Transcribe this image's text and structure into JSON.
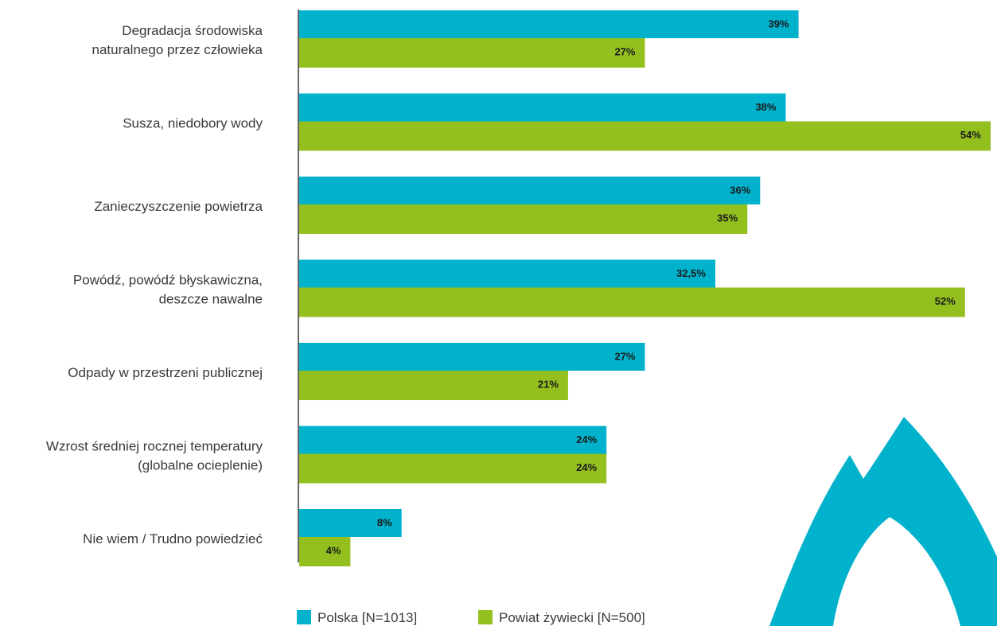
{
  "chart_data": {
    "type": "bar",
    "orientation": "horizontal",
    "categories": [
      [
        "Degradacja środowiska",
        "naturalnego przez człowieka"
      ],
      [
        "Susza, niedobory wody"
      ],
      [
        "Zanieczyszczenie powietrza"
      ],
      [
        "Powódź, powódź błyskawiczna,",
        "deszcze nawalne"
      ],
      [
        "Odpady w przestrzeni publicznej"
      ],
      [
        "Wzrost średniej rocznej temperatury",
        "(globalne ocieplenie)"
      ],
      [
        "Nie wiem / Trudno powiedzieć"
      ]
    ],
    "series": [
      {
        "name": "Polska [N=1013]",
        "color": "#00b2cc",
        "values": [
          39,
          38,
          36,
          32.5,
          27,
          24,
          8
        ],
        "labels": [
          "39%",
          "38%",
          "36%",
          "32,5%",
          "27%",
          "24%",
          "8%"
        ]
      },
      {
        "name": "Powiat żywiecki [N=500]",
        "color": "#93c01f",
        "values": [
          27,
          54,
          35,
          52,
          21,
          24,
          4
        ],
        "labels": [
          "27%",
          "54%",
          "35%",
          "52%",
          "21%",
          "24%",
          "4%"
        ]
      }
    ],
    "xlim": [
      0,
      60
    ],
    "grid": false,
    "legend": "bottom",
    "title": "",
    "xlabel": "",
    "ylabel": ""
  },
  "decoration": {
    "logo_color": "#00b2cc",
    "logo_icon": "flame-logo"
  }
}
